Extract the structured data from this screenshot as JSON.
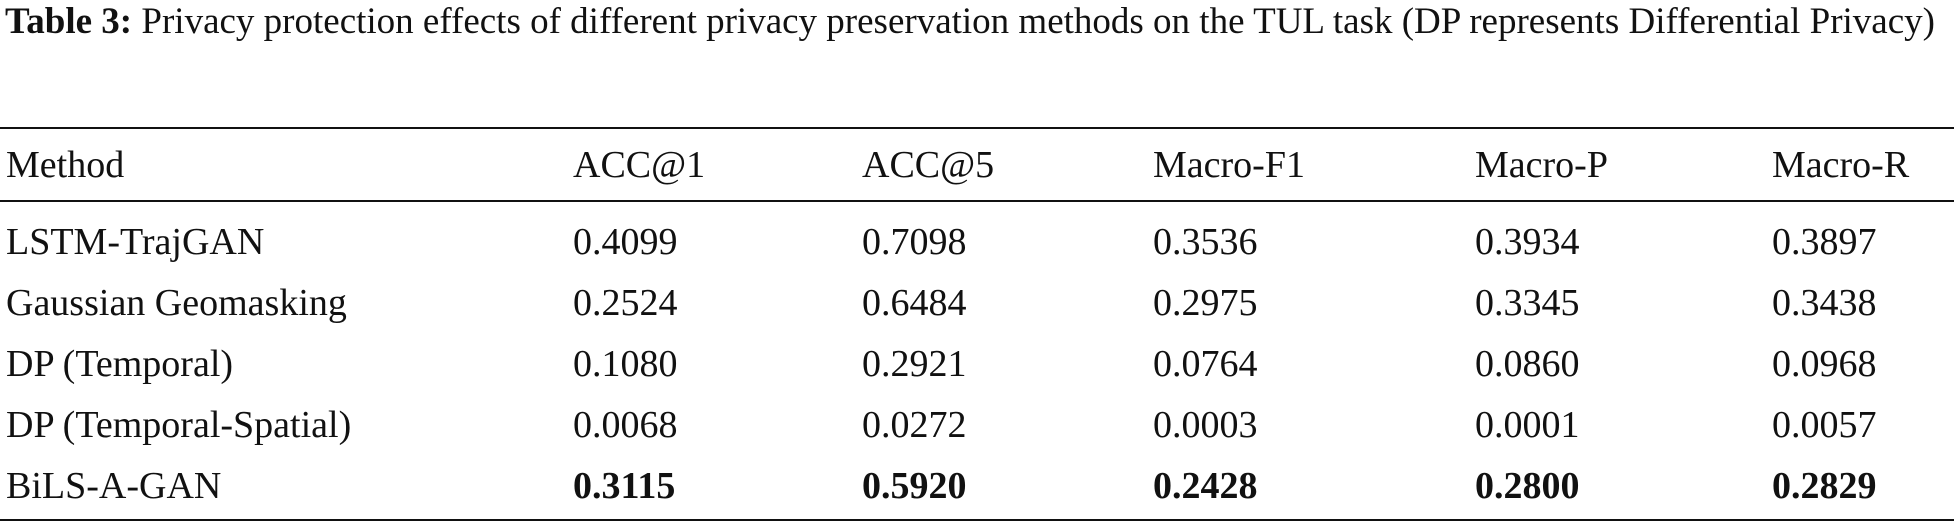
{
  "caption": {
    "label": "Table 3:",
    "text": " Privacy protection effects of different privacy preservation methods on the TUL task (DP represents Differential Privacy)"
  },
  "table": {
    "headers": [
      "Method",
      "ACC@1",
      "ACC@5",
      "Macro-F1",
      "Macro-P",
      "Macro-R"
    ],
    "rows": [
      {
        "method": "LSTM-TrajGAN",
        "values": [
          "0.4099",
          "0.7098",
          "0.3536",
          "0.3934",
          "0.3897"
        ],
        "bold": false
      },
      {
        "method": "Gaussian Geomasking",
        "values": [
          "0.2524",
          "0.6484",
          "0.2975",
          "0.3345",
          "0.3438"
        ],
        "bold": false
      },
      {
        "method": "DP (Temporal)",
        "values": [
          "0.1080",
          "0.2921",
          "0.0764",
          "0.0860",
          "0.0968"
        ],
        "bold": false
      },
      {
        "method": "DP (Temporal-Spatial)",
        "values": [
          "0.0068",
          "0.0272",
          "0.0003",
          "0.0001",
          "0.0057"
        ],
        "bold": false
      },
      {
        "method": "BiLS-A-GAN",
        "values": [
          "0.3115",
          "0.5920",
          "0.2428",
          "0.2800",
          "0.2829"
        ],
        "bold": true
      }
    ]
  }
}
